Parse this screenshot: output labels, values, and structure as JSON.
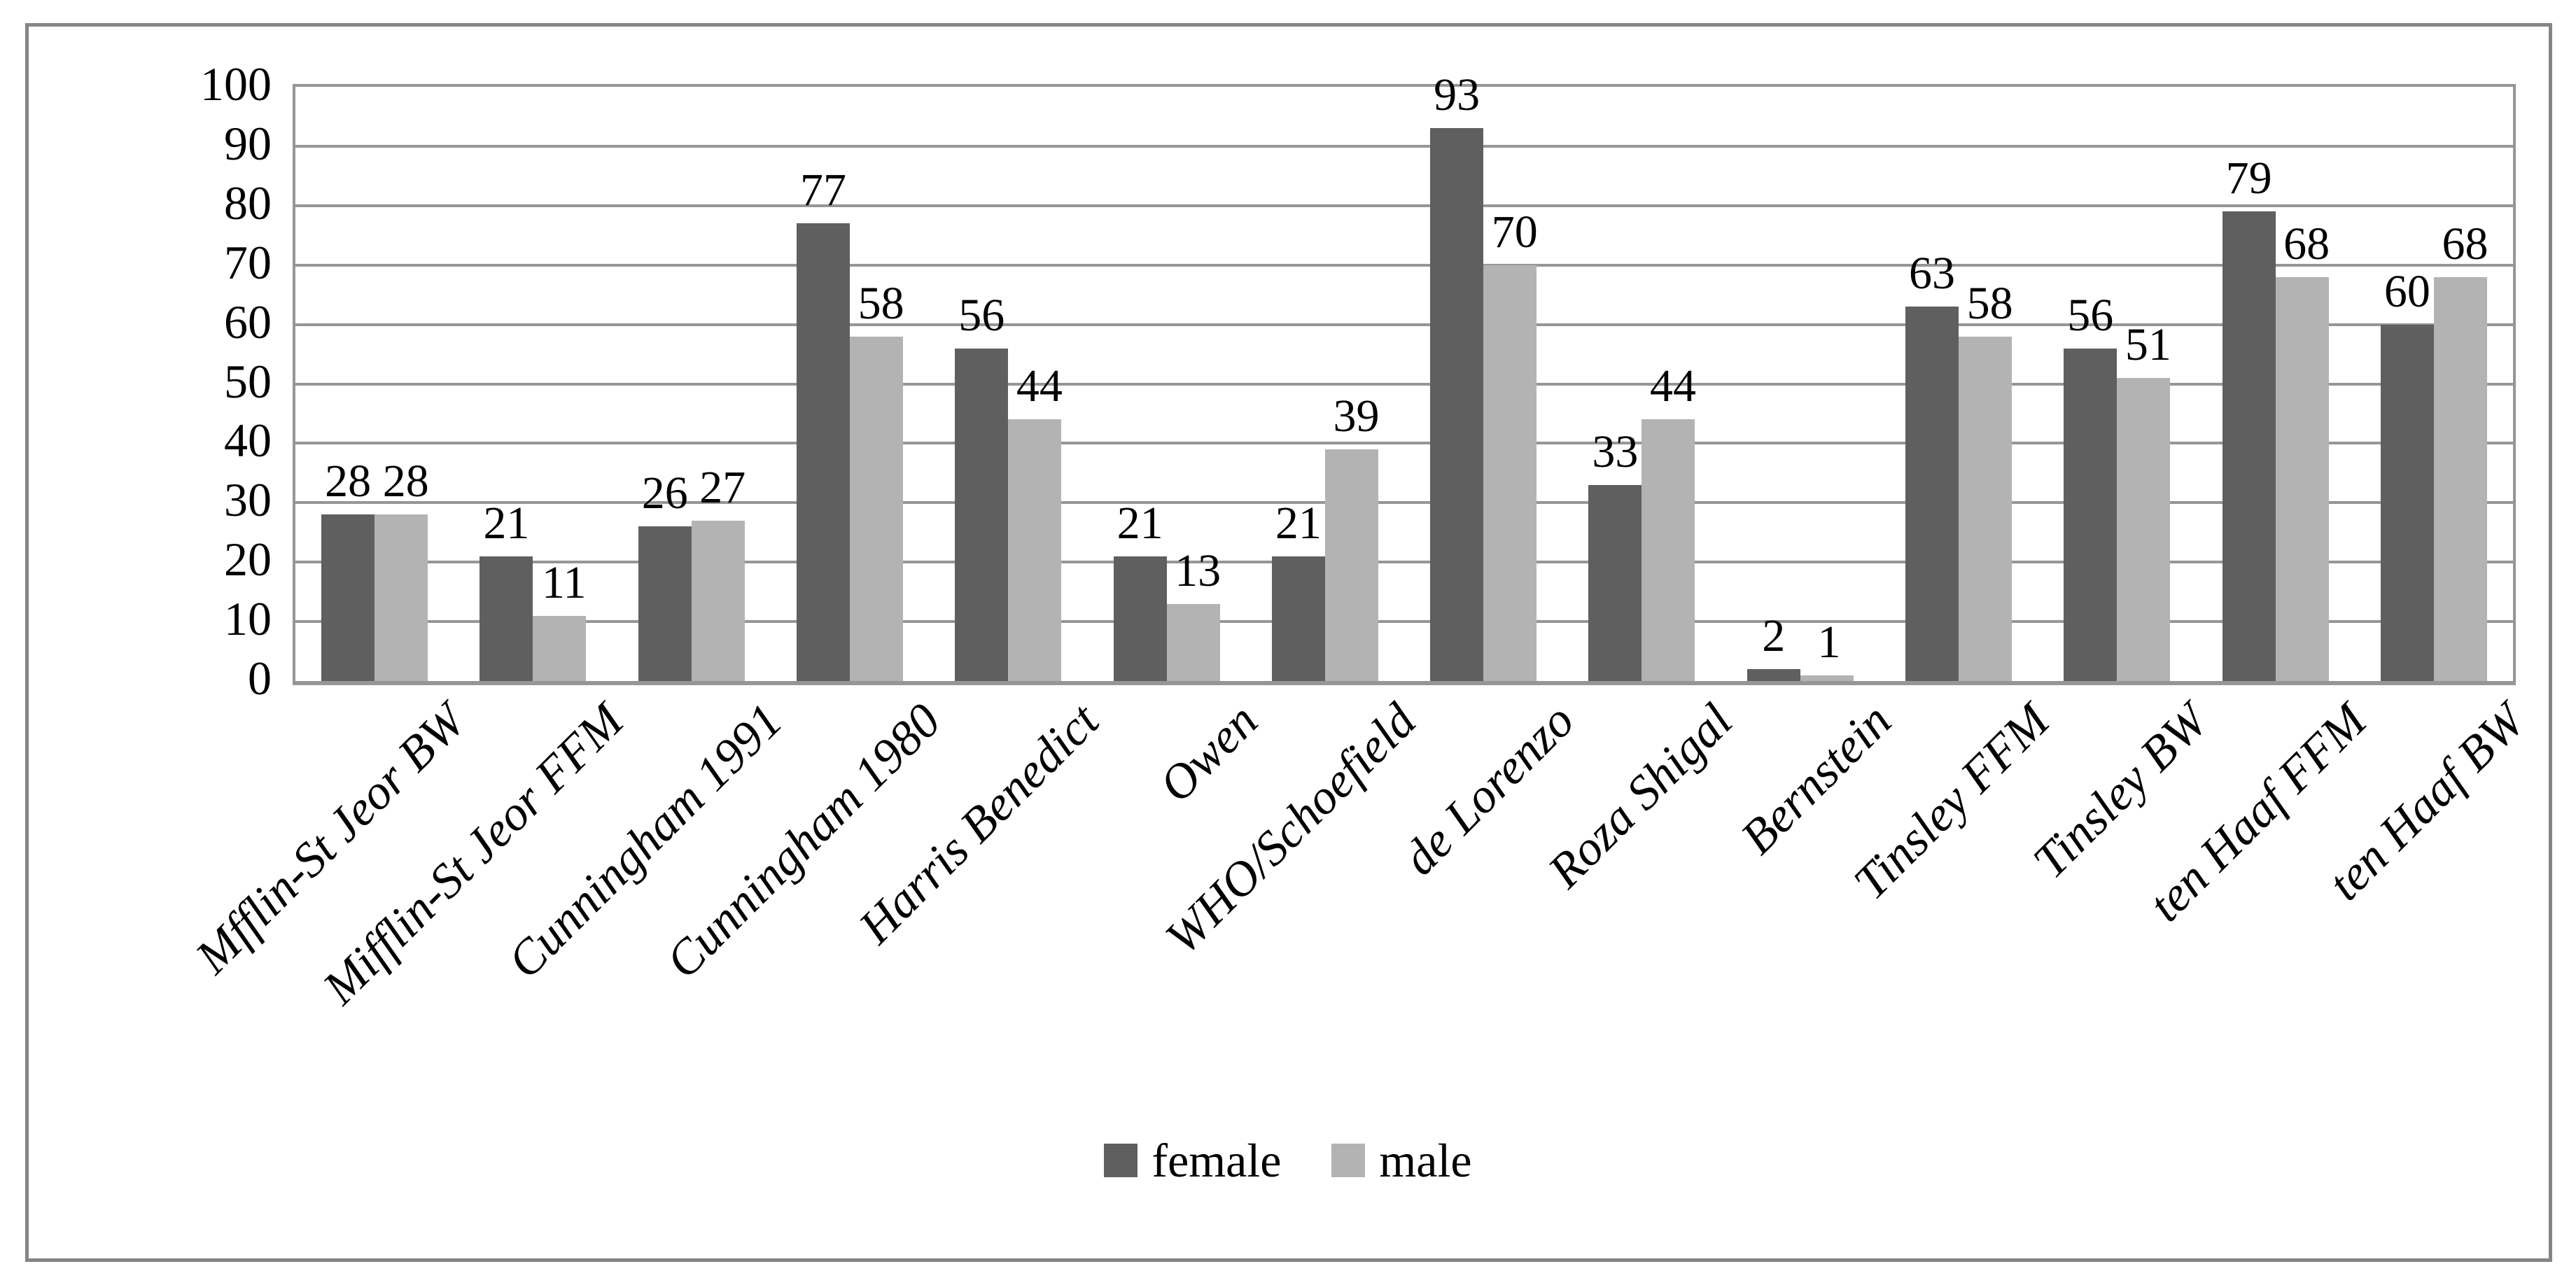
{
  "chart_data": {
    "type": "bar",
    "title": "",
    "xlabel": "",
    "ylabel": "",
    "categories": [
      "Mfflin-St Jeor BW",
      "Mifflin-St Jeor FFM",
      "Cunningham 1991",
      "Cunningham 1980",
      "Harris Benedict",
      "Owen",
      "WHO/Schoefield",
      "de Lorenzo",
      "Roza Shigal",
      "Bernstein",
      "Tinsley FFM",
      "Tinsley BW",
      "ten Haaf FFM",
      "ten Haaf BW"
    ],
    "series": [
      {
        "name": "female",
        "color": "#5F5F5F",
        "values": [
          28,
          21,
          26,
          77,
          56,
          21,
          21,
          93,
          33,
          2,
          63,
          56,
          79,
          60
        ]
      },
      {
        "name": "male",
        "color": "#B3B3B3",
        "values": [
          28,
          11,
          27,
          58,
          44,
          13,
          39,
          70,
          44,
          1,
          58,
          51,
          68,
          68
        ]
      }
    ],
    "ylim": [
      0,
      100
    ],
    "ytick_step": 10,
    "yticks": [
      0,
      10,
      20,
      30,
      40,
      50,
      60,
      70,
      80,
      90,
      100
    ],
    "grid": "horizontal-major-only",
    "bar_labels_shown": true,
    "legend_position": "bottom-center",
    "x_label_rotation_deg": -45
  },
  "legend": {
    "items": [
      {
        "label": "female",
        "color": "#5F5F5F"
      },
      {
        "label": "male",
        "color": "#B3B3B3"
      }
    ]
  },
  "colors": {
    "figure_border": "#858585",
    "plot_frame": "#969696",
    "gridline": "#969696",
    "female_bar": "#5F5F5F",
    "male_bar": "#B3B3B3",
    "text": "#000000",
    "background": "#FFFFFF"
  }
}
